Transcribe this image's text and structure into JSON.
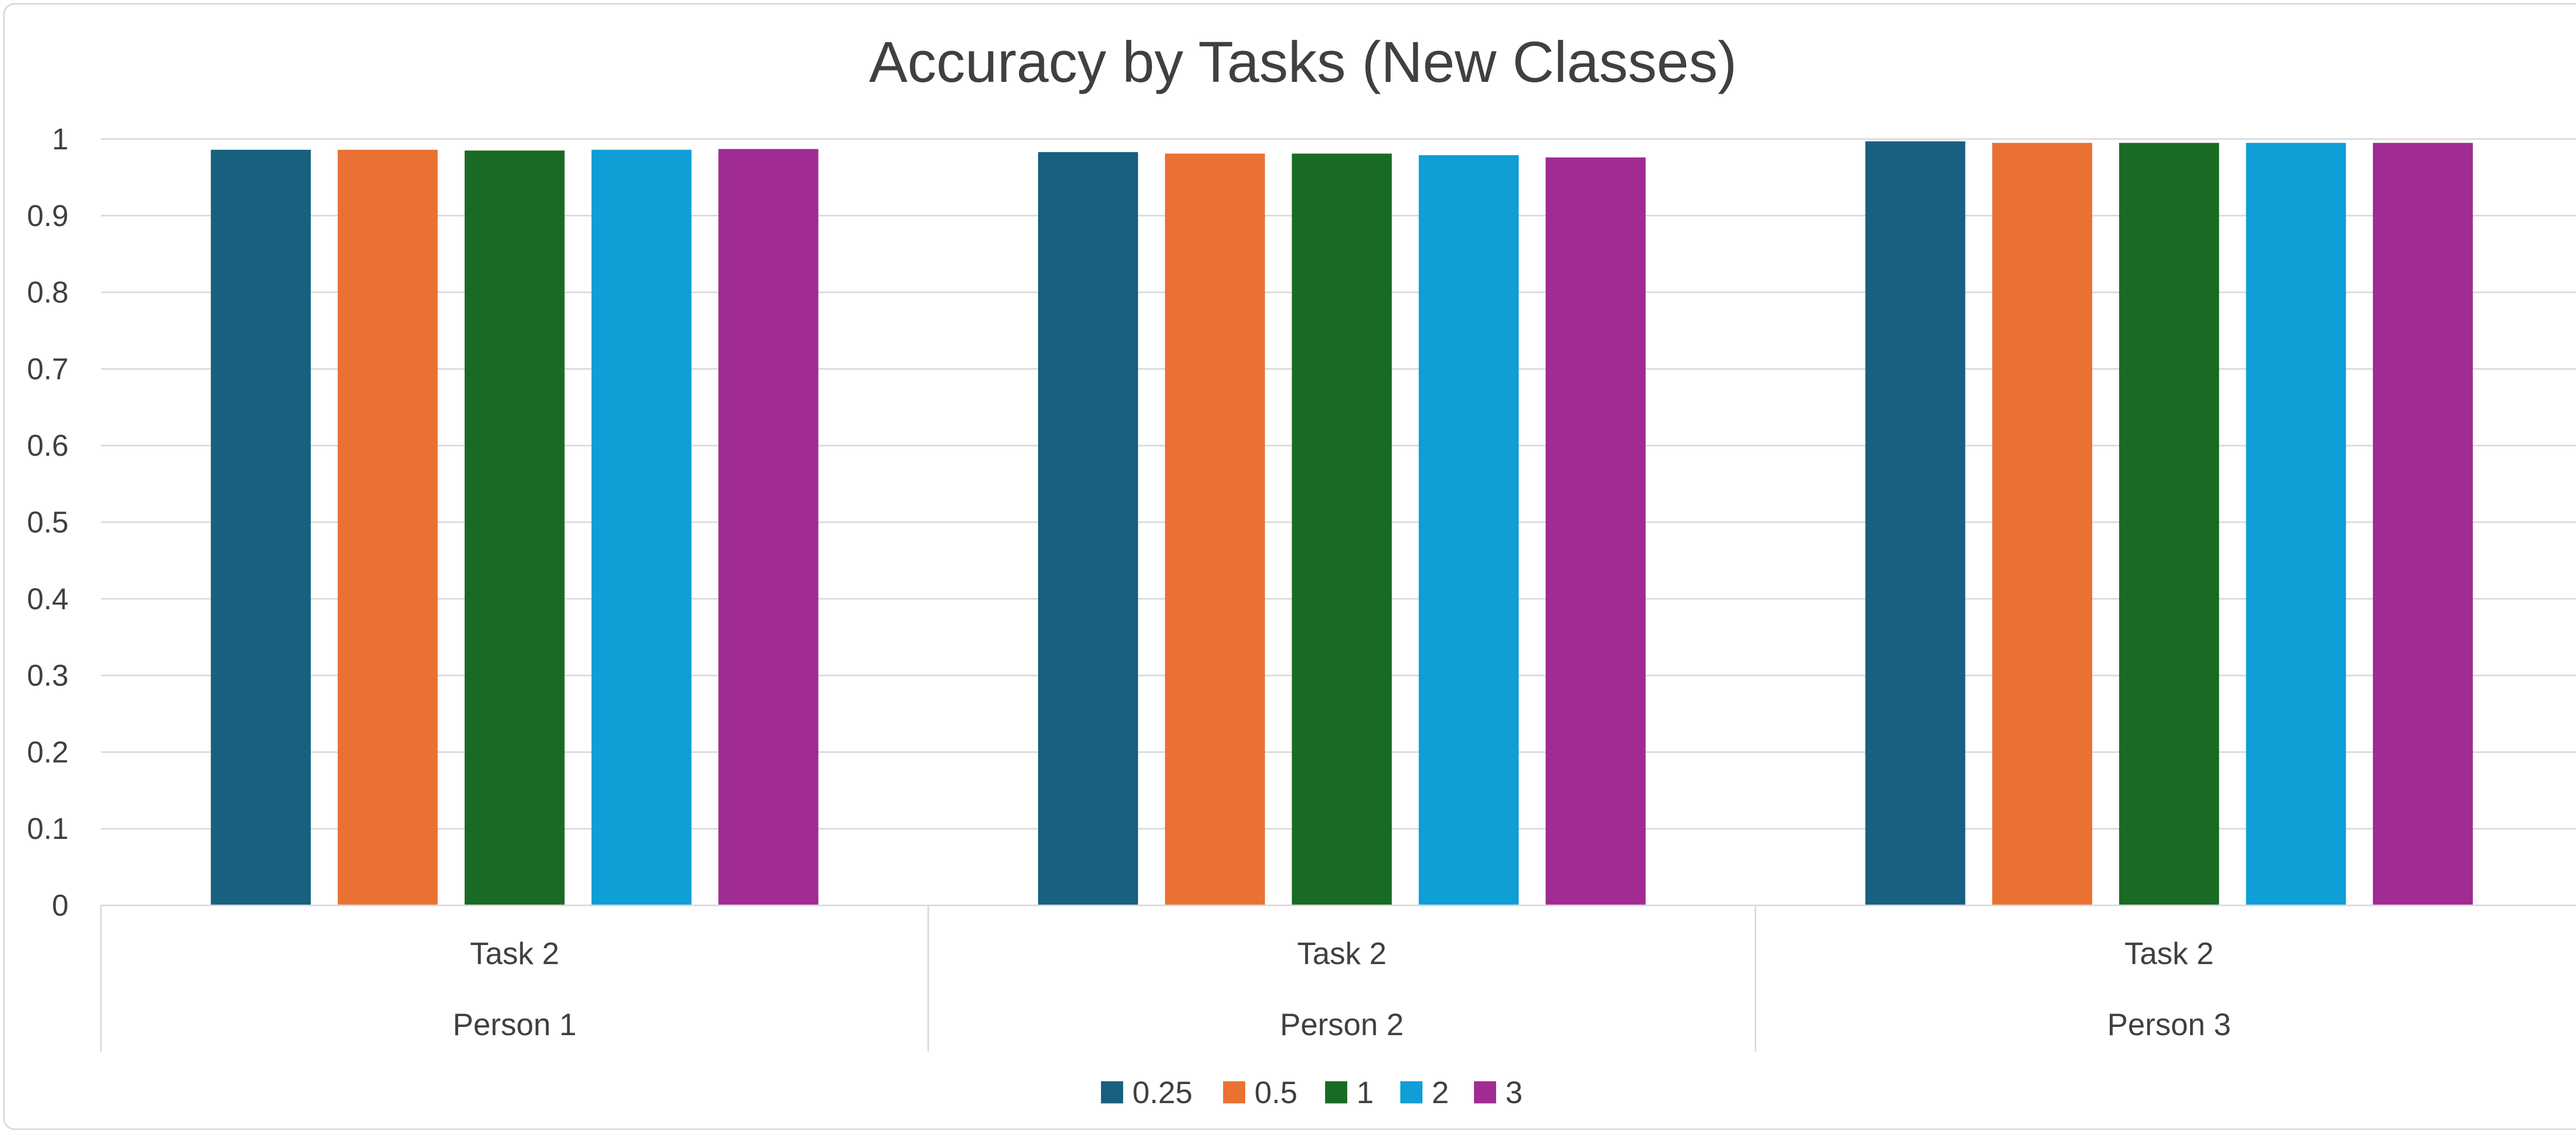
{
  "chart_data": {
    "type": "bar",
    "title": "Accuracy by Tasks (New Classes)",
    "xlabel": "",
    "ylabel": "",
    "ylim": [
      0,
      1
    ],
    "yticks": [
      0,
      0.1,
      0.2,
      0.3,
      0.4,
      0.5,
      0.6,
      0.7,
      0.8,
      0.9,
      1
    ],
    "ytick_labels": [
      "0",
      "0.1",
      "0.2",
      "0.3",
      "0.4",
      "0.5",
      "0.6",
      "0.7",
      "0.8",
      "0.9",
      "1"
    ],
    "grid": true,
    "legend_position": "bottom",
    "categories": [
      {
        "task": "Task 2",
        "person": "Person 1"
      },
      {
        "task": "Task 2",
        "person": "Person 2"
      },
      {
        "task": "Task 2",
        "person": "Person 3"
      }
    ],
    "series": [
      {
        "name": "0.25",
        "color": "#17607f",
        "values": [
          0.986,
          0.983,
          0.997
        ]
      },
      {
        "name": "0.5",
        "color": "#e97132",
        "values": [
          0.986,
          0.981,
          0.995
        ]
      },
      {
        "name": "1",
        "color": "#196b24",
        "values": [
          0.985,
          0.981,
          0.995
        ]
      },
      {
        "name": "2",
        "color": "#0f9ed5",
        "values": [
          0.986,
          0.979,
          0.995
        ]
      },
      {
        "name": "3",
        "color": "#a02b93",
        "values": [
          0.987,
          0.976,
          0.995
        ]
      }
    ]
  }
}
